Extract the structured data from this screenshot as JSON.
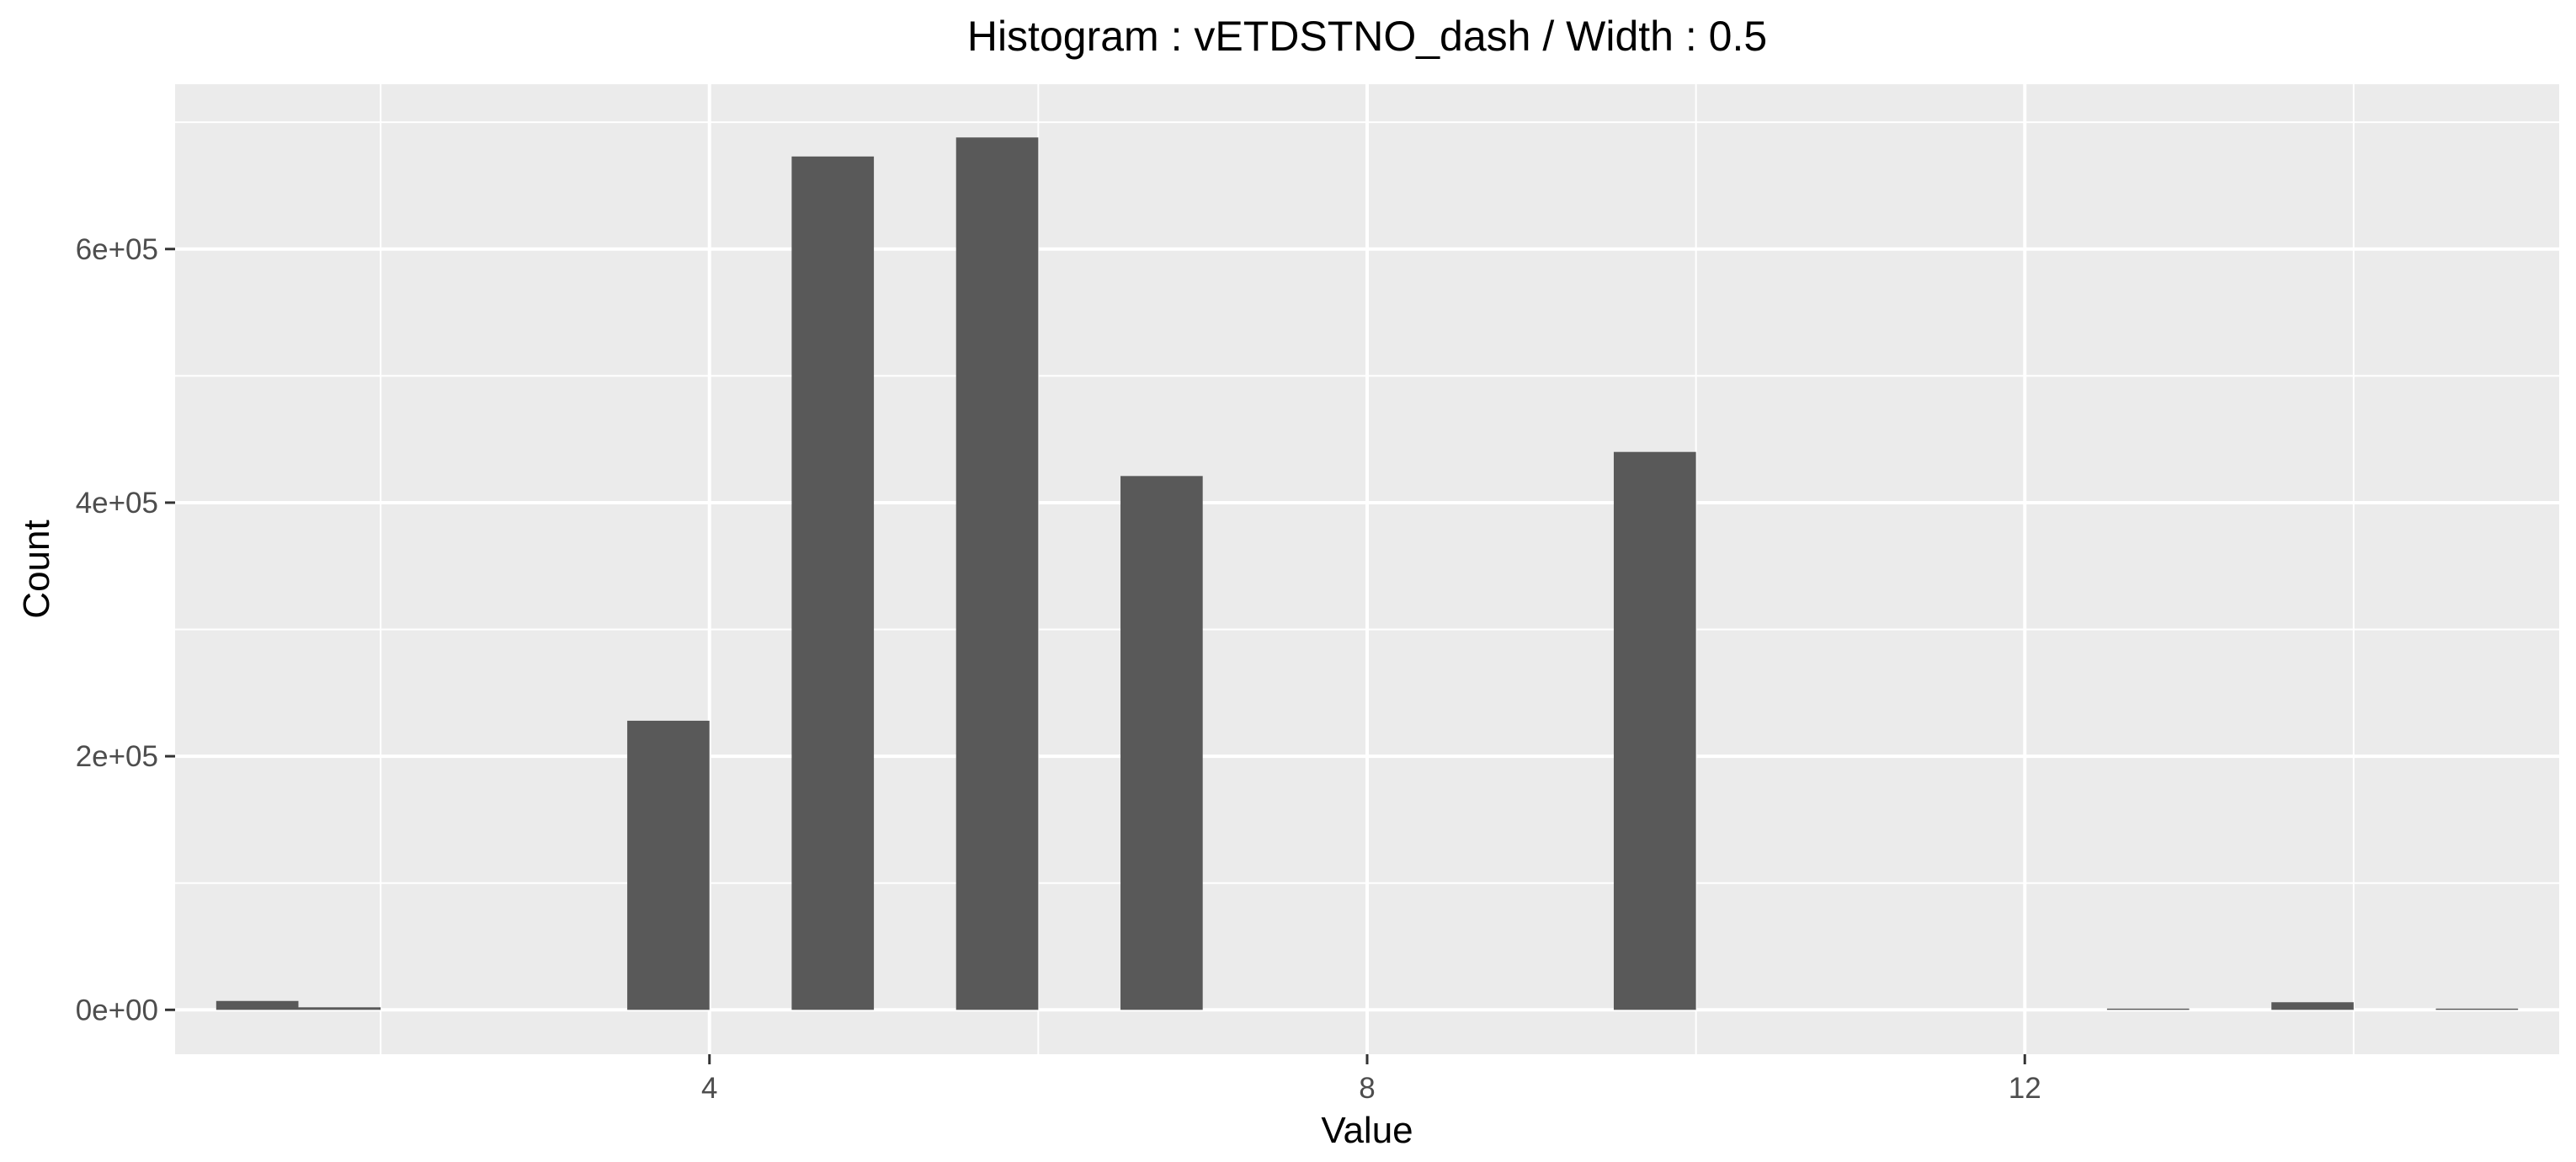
{
  "chart_data": {
    "type": "bar",
    "title": "Histogram : vETDSTNO_dash / Width : 0.5",
    "xlabel": "Value",
    "ylabel": "Count",
    "xlim": [
      0.75,
      15.25
    ],
    "ylim": [
      -35000,
      730000
    ],
    "bin_width": 0.5,
    "x_ticks": [
      {
        "value": 4,
        "label": "4"
      },
      {
        "value": 8,
        "label": "8"
      },
      {
        "value": 12,
        "label": "12"
      }
    ],
    "y_ticks": [
      {
        "value": 0,
        "label": "0e+00"
      },
      {
        "value": 200000,
        "label": "2e+05"
      },
      {
        "value": 400000,
        "label": "4e+05"
      },
      {
        "value": 600000,
        "label": "6e+05"
      }
    ],
    "x_minor_grid": [
      2,
      6,
      10,
      14
    ],
    "y_minor_grid": [
      100000,
      300000,
      500000,
      700000
    ],
    "bins": [
      {
        "x": 1.25,
        "count": 7000
      },
      {
        "x": 1.75,
        "count": 2000
      },
      {
        "x": 3.75,
        "count": 228000
      },
      {
        "x": 4.75,
        "count": 673000
      },
      {
        "x": 5.75,
        "count": 688000
      },
      {
        "x": 6.75,
        "count": 421000
      },
      {
        "x": 9.75,
        "count": 440000
      },
      {
        "x": 12.75,
        "count": 1000
      },
      {
        "x": 13.75,
        "count": 6000
      },
      {
        "x": 14.75,
        "count": 1000
      }
    ],
    "grid": true,
    "colors": {
      "panel_bg": "#ebebeb",
      "grid": "#ffffff",
      "bar": "#595959",
      "tick_text": "#4d4d4d",
      "tick_mark": "#333333"
    }
  }
}
